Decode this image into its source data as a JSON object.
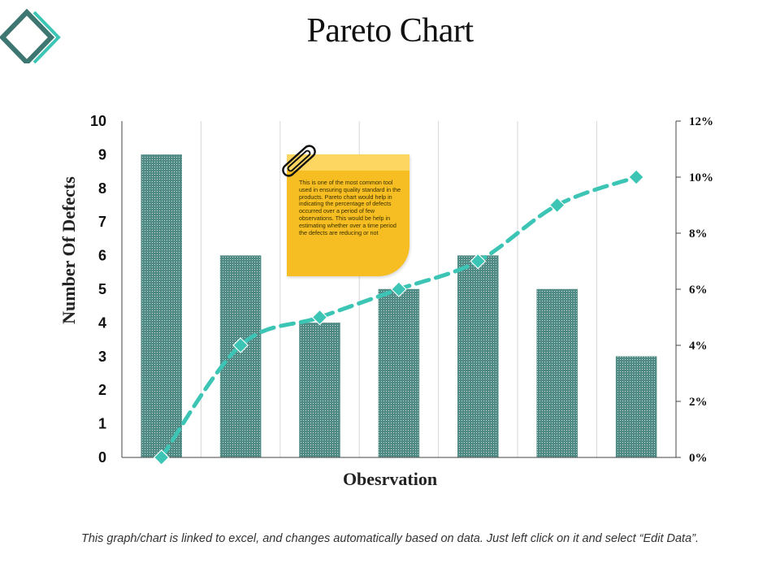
{
  "slide": {
    "title": "Pareto Chart",
    "footer": "This graph/chart is linked to excel, and changes automatically based on data. Just left click on it and select “Edit Data”.",
    "logo_icon": "diamond-logo-icon",
    "note_text": "This is one of the most common tool used in ensuring quality standard in the products. Pareto chart would help in indicating the percentage of defects occurred over a period of few observations. This would be help in estimating whether over a time period the defects are reducing or not",
    "colors": {
      "bar": "#4f8a84",
      "line": "#3cc5b4",
      "note": "#f6be22",
      "logo_dark": "#3e7772",
      "logo_light": "#3cc5b4"
    }
  },
  "chart_data": {
    "type": "bar",
    "xlabel": "Obesrvation",
    "ylabel": "Number Of Defects",
    "ylim": [
      0,
      10
    ],
    "y_ticks": [
      "0",
      "1",
      "2",
      "3",
      "4",
      "5",
      "6",
      "7",
      "8",
      "9",
      "10"
    ],
    "y2lim": [
      0,
      12
    ],
    "y2_ticks": [
      "0%",
      "2%",
      "4%",
      "6%",
      "8%",
      "10%",
      "12%"
    ],
    "grid": "vertical",
    "series": [
      {
        "type": "bar",
        "axis": "left",
        "values": [
          9,
          6,
          4,
          5,
          6,
          5,
          3
        ]
      },
      {
        "type": "line",
        "axis": "right",
        "style": "dashed",
        "marker": "diamond",
        "values": [
          0,
          4,
          5,
          6,
          7,
          9,
          10
        ]
      }
    ]
  }
}
